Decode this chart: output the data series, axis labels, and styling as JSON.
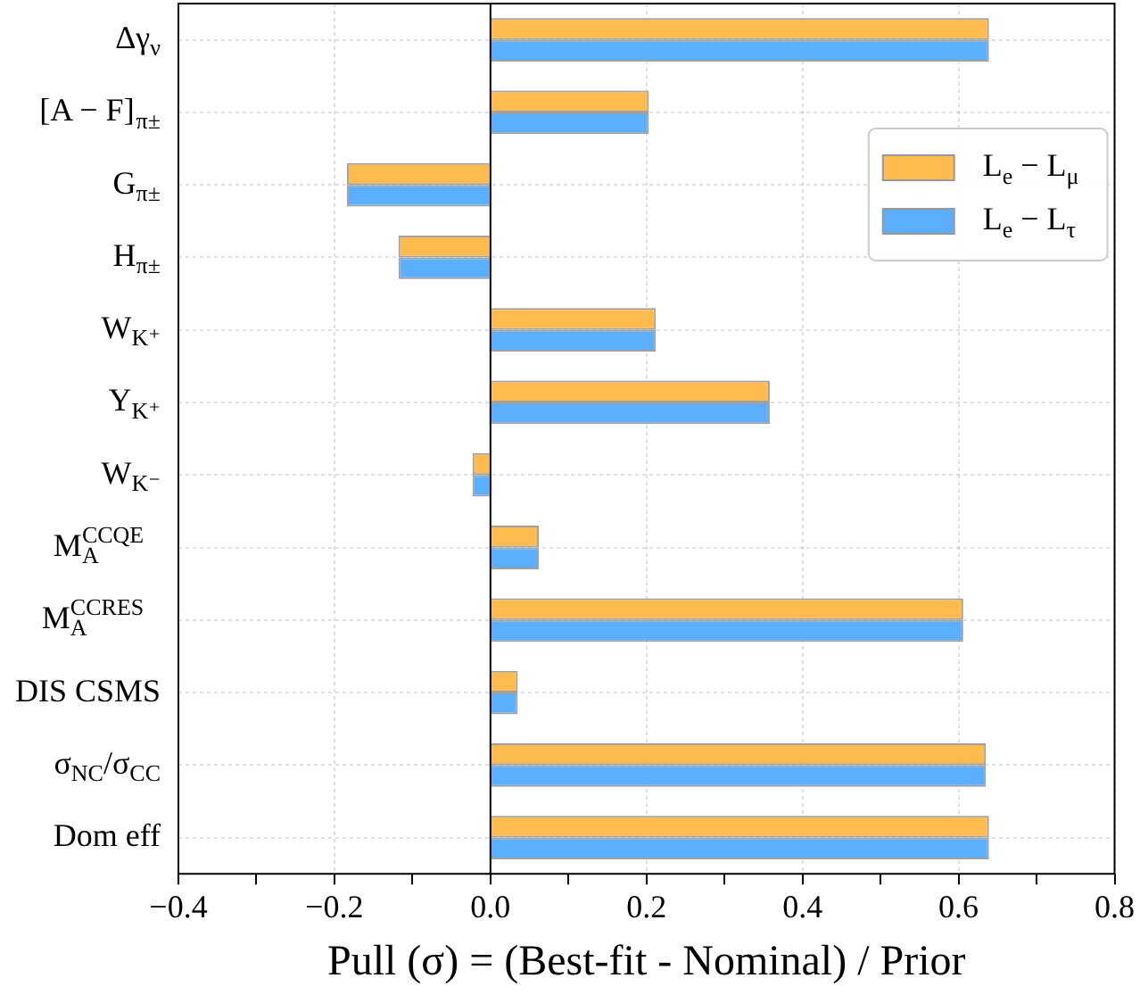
{
  "chart_data": {
    "type": "bar",
    "orientation": "horizontal",
    "xlabel": "Pull (σ) = (Best-fit - Nominal) / Prior",
    "categories": [
      "Δγ$_{ν}$",
      "[A − F]$_{π±}$",
      "G$_{π±}$",
      "H$_{π±}$",
      "W$_{K⁺}$",
      "Y$_{K⁺}$",
      "W$_{K⁻}$",
      "M$_{A}$$^{CCQE}$",
      "M$_{A}$$^{CCRES}$",
      "DIS CSMS",
      "σ$_{NC}$/σ$_{CC}$",
      "Dom eff"
    ],
    "series": [
      {
        "name": "L$_{e}$ − L$_{μ}$",
        "color": "#ffbb4d",
        "values": [
          0.639,
          0.203,
          -0.184,
          -0.118,
          0.212,
          0.358,
          -0.023,
          0.062,
          0.606,
          0.035,
          0.635,
          0.639
        ]
      },
      {
        "name": "L$_{e}$ − L$_{τ}$",
        "color": "#5caeff",
        "values": [
          0.639,
          0.203,
          -0.184,
          -0.118,
          0.212,
          0.358,
          -0.023,
          0.062,
          0.606,
          0.035,
          0.635,
          0.639
        ]
      }
    ],
    "xlim": [
      -0.4,
      0.8
    ],
    "xticks": [
      {
        "value": -0.4,
        "label": "−0.4"
      },
      {
        "value": -0.3,
        "label": null
      },
      {
        "value": -0.2,
        "label": "−0.2"
      },
      {
        "value": -0.1,
        "label": null
      },
      {
        "value": 0,
        "label": "0.0"
      },
      {
        "value": 0.1,
        "label": null
      },
      {
        "value": 0.2,
        "label": "0.2"
      },
      {
        "value": 0.3,
        "label": null
      },
      {
        "value": 0.4,
        "label": "0.4"
      },
      {
        "value": 0.5,
        "label": null
      },
      {
        "value": 0.6,
        "label": "0.6"
      },
      {
        "value": 0.7,
        "label": null
      },
      {
        "value": 0.8,
        "label": "0.8"
      }
    ],
    "ref_lines": [
      {
        "axis": "x",
        "value": 0,
        "color": "#000000"
      }
    ],
    "grid": true,
    "legend": "top right"
  }
}
